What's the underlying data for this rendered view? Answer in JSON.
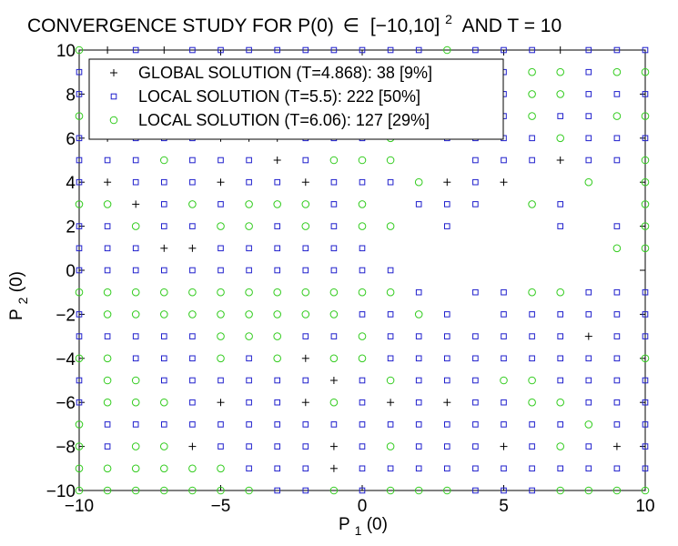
{
  "chart_data": {
    "type": "scatter",
    "title_parts": {
      "prefix": "CONVERGENCE STUDY FOR P(0)",
      "in_symbol": "∈",
      "interval": "[−10,10]",
      "exponent": "2",
      "suffix": "AND T = 10"
    },
    "xlabel": {
      "main": "P",
      "sub": "1",
      "rest": "(0)"
    },
    "ylabel": {
      "main": "P",
      "sub": "2",
      "rest": "(0)"
    },
    "xlim": [
      -10,
      10
    ],
    "ylim": [
      -10,
      10
    ],
    "xticks": [
      -10,
      -5,
      0,
      5,
      10
    ],
    "yticks": [
      -10,
      -8,
      -6,
      -4,
      -2,
      0,
      2,
      4,
      6,
      8,
      10
    ],
    "xtick_labels": [
      "−10",
      "−5",
      "0",
      "5",
      "10"
    ],
    "ytick_labels": [
      "−10",
      "−8",
      "−6",
      "−4",
      "−2",
      "0",
      "2",
      "4",
      "6",
      "8",
      "10"
    ],
    "grid": false,
    "legend_position": "top-left",
    "series": [
      {
        "name": "GLOBAL SOLUTION (T=4.868): 38 [9%]",
        "marker": "plus",
        "color": "#000000",
        "points": []
      },
      {
        "name": "LOCAL SOLUTION (T=5.5): 222 [50%]",
        "marker": "square",
        "color": "#1f1fcc",
        "points": []
      },
      {
        "name": "LOCAL SOLUTION (T=6.06): 127 [29%]",
        "marker": "circle",
        "color": "#33cc1f",
        "points": []
      }
    ],
    "grid_rows": {
      "10": "oPSPSSSSSSSSSOSSSPSSS",
      "9": "SSSSSSSSSSSSSOSSOOSOO",
      "8": "SSSSSSSSSSSSSOSSOOSSS",
      "7": "OSSSSSSSSSSSSOSSOSSOO",
      "6": "SPSSSPPPSSSO.SSSSOSSS",
      "5": "SSSOSSSPSOOO..SSSPSSO",
      "4": "SPSSSPSSPSSSOPSP..O.O",
      "3": "OOPSOSOOOSO.SSS.OS..O",
      "2": "SSOSSOOSOSOO.S...S.SO",
      "1": "SSSPPSSSSSS........OO",
      "0": "SSSSSSSSSSSS.........",
      "-1": "OOOOOOOOOOOOS.SSOOSSS",
      "-2": "SOOOOOOOOOSSOS.SSSSSS",
      "-3": "SSSSSOOOSSOSSSSSSSPSS",
      "-4": "OOSSSOSOPOOSSSSSSSSSO",
      "-5": "SOOSSSSSSPSOSSSOOSSSS",
      "-6": "SOOOSPSSPOSPSPSSOOSSS",
      "-7": "OSSSSSSSSSSSSSSSSSOSS",
      "-8": "OSOOPSSSSPSOSSSPSOSPS",
      "-9": "OOOOOOSSSPSSSSSSSSSSS",
      "-10": "OOOOOOOSSOSOOOSSSOOOO"
    }
  }
}
